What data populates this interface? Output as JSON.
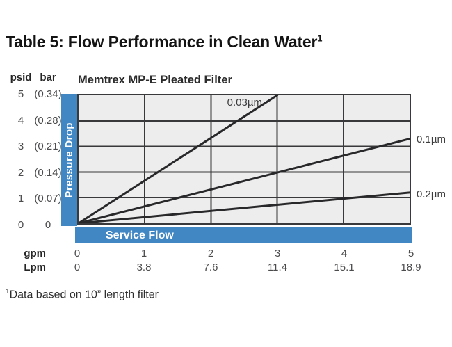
{
  "page": {
    "title": "Table 5: Flow Performance in Clean Water",
    "title_superscript": "1",
    "footnote_superscript": "1",
    "footnote": "Data based on 10” length filter"
  },
  "chart": {
    "title": "Memtrex MP-E Pleated Filter",
    "colors": {
      "accent_blue": "#4187c4",
      "plot_background": "#ededee",
      "grid": "#39393b",
      "series_line": "#28282a"
    },
    "y_axis": {
      "unit_primary": "psid",
      "unit_secondary": "bar",
      "axis_bar_label": "Pressure Drop",
      "ticks_psid": [
        "5",
        "4",
        "3",
        "2",
        "1",
        "0"
      ],
      "ticks_bar": [
        "(0.34)",
        "(0.28)",
        "(0.21)",
        "(0.14)",
        "(0.07)",
        "0"
      ]
    },
    "x_axis": {
      "axis_bar_label": "Service Flow",
      "unit_primary": "gpm",
      "unit_secondary": "Lpm",
      "ticks_gpm": [
        "0",
        "1",
        "2",
        "3",
        "4",
        "5"
      ],
      "ticks_lpm": [
        "0",
        "3.8",
        "7.6",
        "11.4",
        "15.1",
        "18.9"
      ]
    }
  },
  "chart_data": {
    "type": "line",
    "title": "Memtrex MP-E Pleated Filter",
    "xlabel": "Service Flow",
    "ylabel": "Pressure Drop",
    "x_units": {
      "gpm": [
        0,
        1,
        2,
        3,
        4,
        5
      ],
      "Lpm": [
        0,
        3.8,
        7.6,
        11.4,
        15.1,
        18.9
      ]
    },
    "y_units": {
      "psid": [
        0,
        1,
        2,
        3,
        4,
        5
      ],
      "bar": [
        0,
        0.07,
        0.14,
        0.21,
        0.28,
        0.34
      ]
    },
    "xlim": [
      0,
      5
    ],
    "ylim": [
      0,
      5
    ],
    "grid": true,
    "legend_position": "inline-labels",
    "series": [
      {
        "name": "0.03µm",
        "x": [
          0,
          3
        ],
        "y": [
          0,
          5
        ]
      },
      {
        "name": "0.1µm",
        "x": [
          0,
          5
        ],
        "y": [
          0,
          3.3
        ]
      },
      {
        "name": "0.2µm",
        "x": [
          0,
          5
        ],
        "y": [
          0,
          1.2
        ]
      }
    ]
  }
}
